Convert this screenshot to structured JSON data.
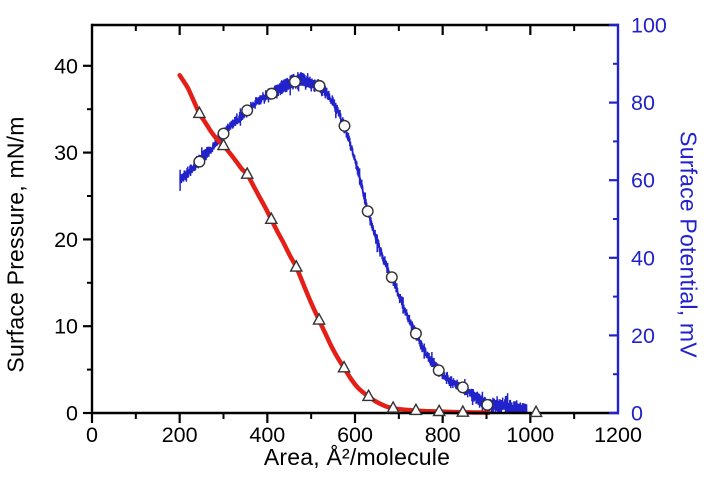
{
  "chart_data": {
    "type": "line",
    "title": "",
    "xlabel": "Area, Å²/molecule",
    "ylabel_left": "Surface Pressure, mN/m",
    "ylabel_right": "Surface Potential, mV",
    "grid": false,
    "legend": null,
    "x_axis": {
      "min": 0,
      "max": 1200,
      "major_ticks": [
        0,
        200,
        400,
        600,
        800,
        1000,
        1200
      ],
      "minor_step": 100,
      "color": "#000000"
    },
    "y_axis_left": {
      "min": 0,
      "max": 44.7,
      "major_ticks": [
        0,
        10,
        20,
        30,
        40
      ],
      "minor_step": 5,
      "color": "#000000"
    },
    "y_axis_right": {
      "min": 0,
      "max": 100,
      "major_ticks": [
        0,
        20,
        40,
        60,
        80,
        100
      ],
      "minor_step": 10,
      "color": "#2222cb"
    },
    "series": [
      {
        "name": "Surface Pressure",
        "axis": "left",
        "color": "#e41f17",
        "line_width": 4.5,
        "marker": "open-triangle",
        "points": [
          [
            200,
            38.9
          ],
          [
            208,
            38.3
          ],
          [
            218,
            37.5
          ],
          [
            230,
            36.2
          ],
          [
            245,
            34.5
          ],
          [
            258,
            33.5
          ],
          [
            272,
            32.4
          ],
          [
            286,
            31.5
          ],
          [
            300,
            30.8
          ],
          [
            315,
            29.9
          ],
          [
            330,
            28.9
          ],
          [
            342,
            28.1
          ],
          [
            354,
            27.5
          ],
          [
            368,
            26.2
          ],
          [
            382,
            24.9
          ],
          [
            396,
            23.6
          ],
          [
            409,
            22.3
          ],
          [
            422,
            21.0
          ],
          [
            436,
            19.7
          ],
          [
            452,
            18.1
          ],
          [
            466,
            16.8
          ],
          [
            480,
            15.1
          ],
          [
            494,
            13.4
          ],
          [
            506,
            12.0
          ],
          [
            518,
            10.7
          ],
          [
            532,
            9.2
          ],
          [
            546,
            7.7
          ],
          [
            560,
            6.4
          ],
          [
            575,
            5.2
          ],
          [
            590,
            4.0
          ],
          [
            605,
            3.0
          ],
          [
            618,
            2.4
          ],
          [
            631,
            1.9
          ],
          [
            645,
            1.4
          ],
          [
            660,
            1.0
          ],
          [
            674,
            0.7
          ],
          [
            687,
            0.55
          ],
          [
            705,
            0.42
          ],
          [
            722,
            0.34
          ],
          [
            739,
            0.28
          ],
          [
            760,
            0.22
          ],
          [
            780,
            0.18
          ],
          [
            805,
            0.14
          ],
          [
            830,
            0.1
          ],
          [
            860,
            0.07
          ],
          [
            905,
            0.05
          ]
        ],
        "markers": [
          [
            245,
            34.5
          ],
          [
            300,
            30.8
          ],
          [
            354,
            27.5
          ],
          [
            409,
            22.3
          ],
          [
            466,
            16.8
          ],
          [
            518,
            10.7
          ],
          [
            575,
            5.2
          ],
          [
            631,
            1.9
          ],
          [
            687,
            0.55
          ],
          [
            739,
            0.28
          ],
          [
            792,
            0.16
          ],
          [
            846,
            0.08
          ],
          [
            1013,
            0.05
          ]
        ]
      },
      {
        "name": "Surface Potential",
        "axis": "right",
        "color": "#2222cb",
        "line_width": 1.8,
        "noise_mV": 1.4,
        "marker": "open-circle",
        "points": [
          [
            201,
            60.5
          ],
          [
            212,
            61.2
          ],
          [
            224,
            62.5
          ],
          [
            245,
            64.8
          ],
          [
            258,
            66.3
          ],
          [
            272,
            68.0
          ],
          [
            286,
            70.2
          ],
          [
            300,
            72.0
          ],
          [
            314,
            73.6
          ],
          [
            328,
            75.2
          ],
          [
            341,
            76.6
          ],
          [
            354,
            78.0
          ],
          [
            368,
            79.3
          ],
          [
            382,
            80.6
          ],
          [
            396,
            81.5
          ],
          [
            410,
            82.3
          ],
          [
            424,
            83.3
          ],
          [
            438,
            84.4
          ],
          [
            452,
            85.0
          ],
          [
            463,
            85.4
          ],
          [
            475,
            85.6
          ],
          [
            488,
            85.4
          ],
          [
            500,
            85.0
          ],
          [
            510,
            84.7
          ],
          [
            519,
            84.3
          ],
          [
            530,
            83.0
          ],
          [
            541,
            81.3
          ],
          [
            552,
            79.4
          ],
          [
            564,
            76.9
          ],
          [
            576,
            74.0
          ],
          [
            588,
            70.0
          ],
          [
            600,
            65.4
          ],
          [
            615,
            58.6
          ],
          [
            629,
            52.0
          ],
          [
            643,
            46.6
          ],
          [
            657,
            42.0
          ],
          [
            670,
            38.2
          ],
          [
            684,
            35.0
          ],
          [
            698,
            31.0
          ],
          [
            712,
            27.0
          ],
          [
            726,
            23.5
          ],
          [
            739,
            20.5
          ],
          [
            752,
            17.6
          ],
          [
            765,
            14.9
          ],
          [
            778,
            12.8
          ],
          [
            791,
            11.0
          ],
          [
            805,
            9.4
          ],
          [
            818,
            8.3
          ],
          [
            832,
            7.4
          ],
          [
            846,
            6.6
          ],
          [
            860,
            5.2
          ],
          [
            874,
            3.8
          ],
          [
            888,
            2.8
          ],
          [
            902,
            2.1
          ],
          [
            915,
            1.8
          ],
          [
            928,
            2.0
          ],
          [
            942,
            2.4
          ],
          [
            955,
            1.3
          ],
          [
            968,
            0.9
          ],
          [
            980,
            0.6
          ],
          [
            992,
            0.4
          ]
        ],
        "markers": [
          [
            245,
            64.8
          ],
          [
            300,
            72.0
          ],
          [
            354,
            78.0
          ],
          [
            410,
            82.3
          ],
          [
            463,
            85.4
          ],
          [
            519,
            84.3
          ],
          [
            576,
            74.0
          ],
          [
            629,
            52.0
          ],
          [
            684,
            35.0
          ],
          [
            739,
            20.5
          ],
          [
            791,
            11.0
          ],
          [
            846,
            6.6
          ],
          [
            902,
            2.1
          ]
        ]
      }
    ]
  }
}
